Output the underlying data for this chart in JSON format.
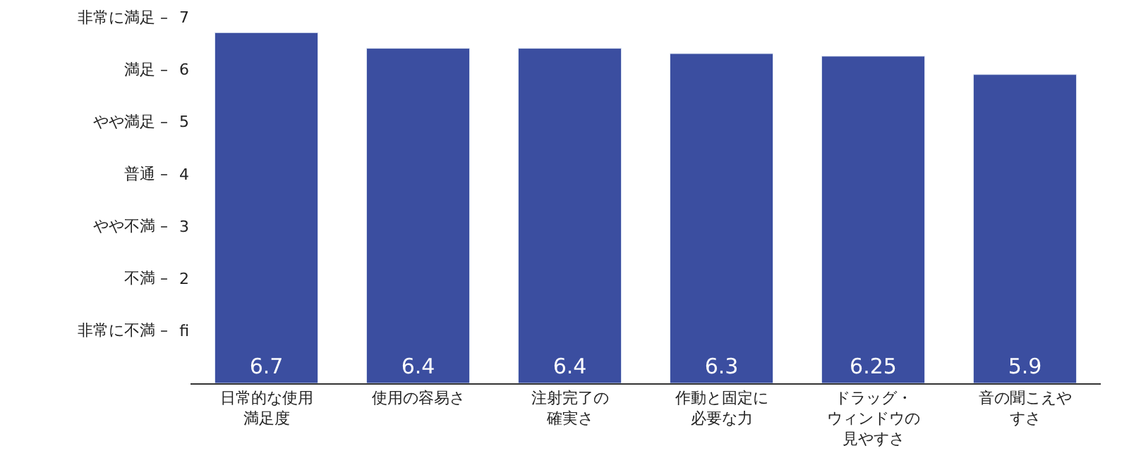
{
  "chart_data": {
    "type": "bar",
    "categories": [
      "日常的な使用満足度",
      "使用の容易さ",
      "注射完了の確実さ",
      "作動と固定に必要な力",
      "ドラッグ・ウィンドウの見やすさ",
      "音の聞こえやすさ"
    ],
    "values": [
      6.7,
      6.4,
      6.4,
      6.3,
      6.25,
      5.9
    ],
    "color": "#3b4ea0",
    "ylim": [
      0,
      7
    ],
    "yticks": [
      {
        "value": 1,
        "label": "fi"
      },
      2,
      3,
      4,
      5,
      6,
      7
    ],
    "annotations": [
      "非常に不満 –",
      "不満 –",
      "やや不満 –",
      "普通 –",
      "やや満足 –",
      "満足 –",
      "非常に満足 –"
    ],
    "legend": false,
    "data_labels": true
  }
}
